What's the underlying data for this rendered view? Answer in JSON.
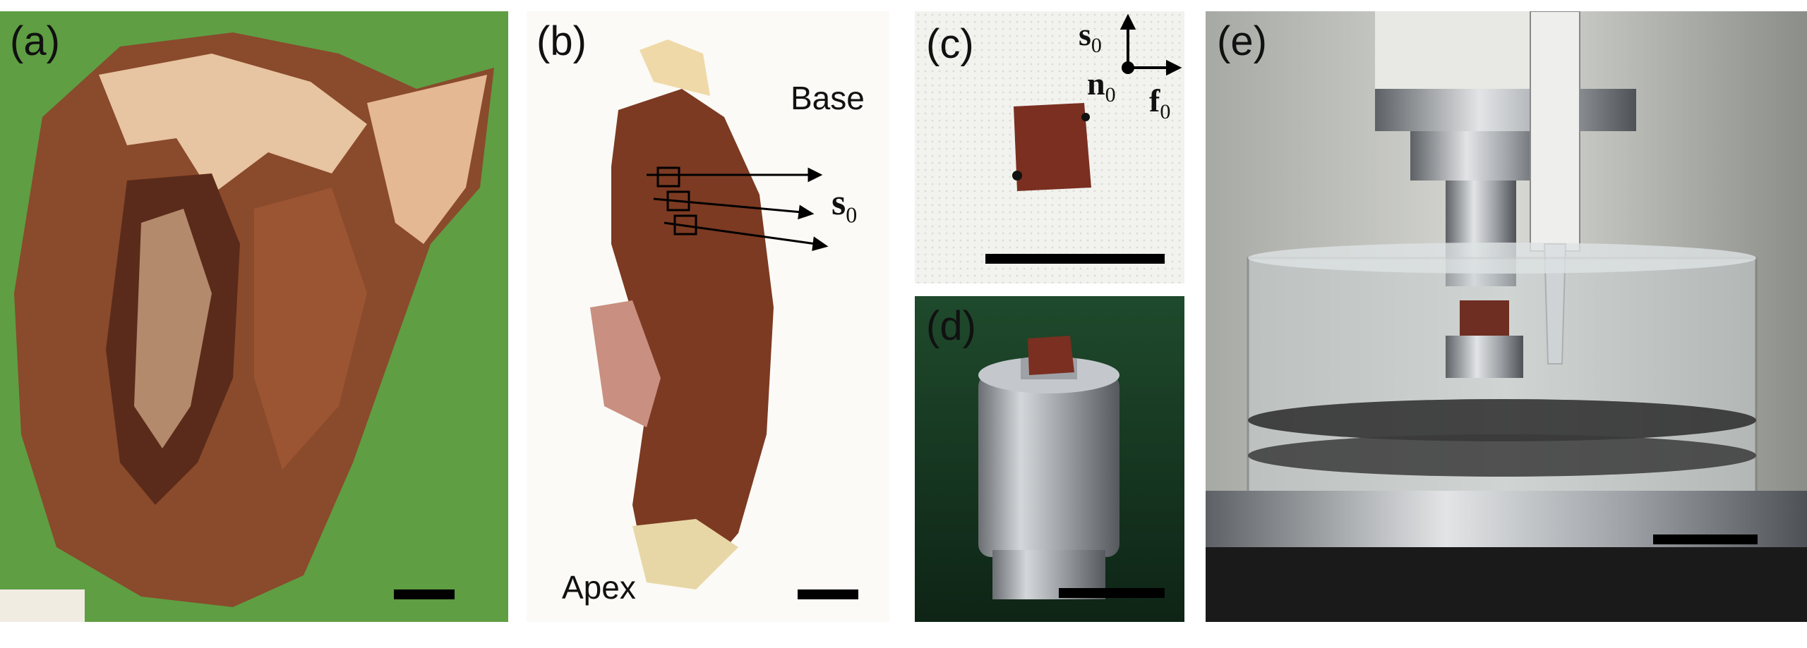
{
  "panels": {
    "a": {
      "label": "(a)"
    },
    "b": {
      "label": "(b)",
      "base_text": "Base",
      "apex_text": "Apex",
      "vector_label": "s",
      "vector_sub": "0"
    },
    "c": {
      "label": "(c)",
      "axis_s": "s",
      "axis_s_sub": "0",
      "axis_n": "n",
      "axis_n_sub": "0",
      "axis_f": "f",
      "axis_f_sub": "0"
    },
    "d": {
      "label": "(d)"
    },
    "e": {
      "label": "(e)"
    }
  },
  "colors": {
    "green_background": "#6aa84a",
    "tissue": "#7a3a22",
    "metal": "#b8bcc0"
  }
}
